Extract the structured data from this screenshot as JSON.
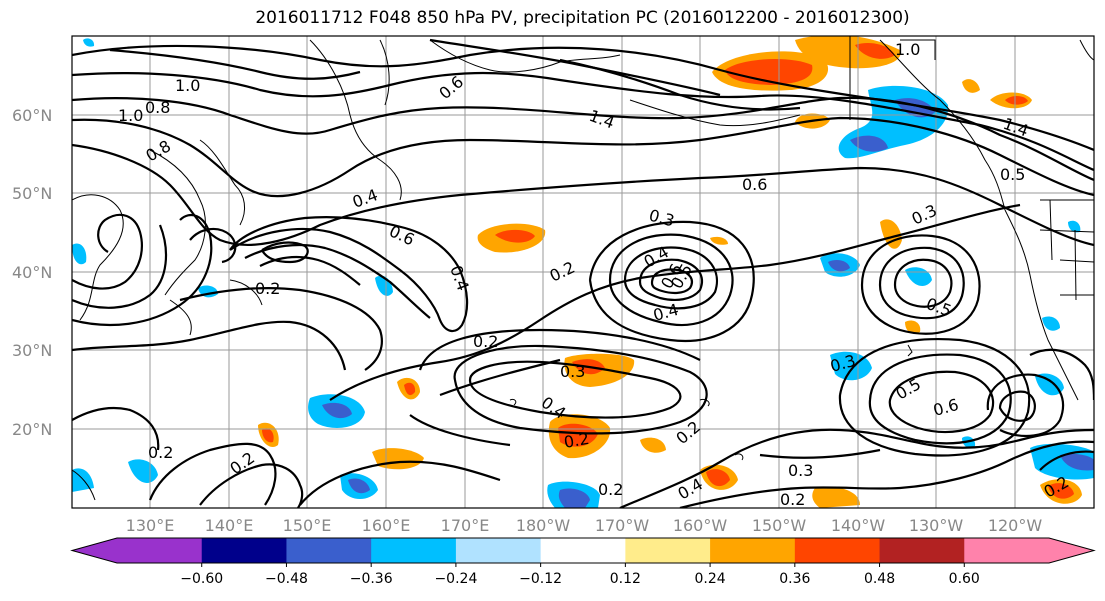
{
  "title": "2016011712 F048 850 hPa PV, precipitation PC (2016012200 - 2016012300)",
  "lat_labels": [
    "60°N",
    "50°N",
    "40°N",
    "30°N",
    "20°N"
  ],
  "lon_labels": [
    "130°E",
    "140°E",
    "150°E",
    "160°E",
    "170°E",
    "180°W",
    "170°W",
    "160°W",
    "150°W",
    "140°W",
    "130°W",
    "120°W"
  ],
  "contour_labels": [
    "1.0",
    "0.8",
    "1.0",
    "0.8",
    "0.6",
    "1.4",
    "0.4",
    "0.6",
    "0.4",
    "0.6",
    "0.3",
    "0.4",
    "0.2",
    "0.2",
    "0.2",
    "0.5",
    "0.6",
    "0.4",
    "0.3",
    "0.3",
    "0.5",
    "0.6",
    "0.5",
    "0.3",
    "0.2",
    "0.2",
    "0.2",
    "0.2",
    "0.2",
    "0.4",
    "0.3",
    "0.2",
    "1.0",
    "1.4",
    "0.5",
    "0.4",
    "0.2"
  ],
  "colorbar": {
    "ticks": [
      "−0.60",
      "−0.48",
      "−0.36",
      "−0.24",
      "−0.12",
      "0.12",
      "0.24",
      "0.36",
      "0.48",
      "0.60"
    ],
    "colors": [
      "#9932cc",
      "#00008b",
      "#3a5fcd",
      "#00bfff",
      "#b0e2ff",
      "#ffffff",
      "#ffec8b",
      "#ffa500",
      "#ff4500",
      "#b22222",
      "#ff82ab"
    ]
  }
}
